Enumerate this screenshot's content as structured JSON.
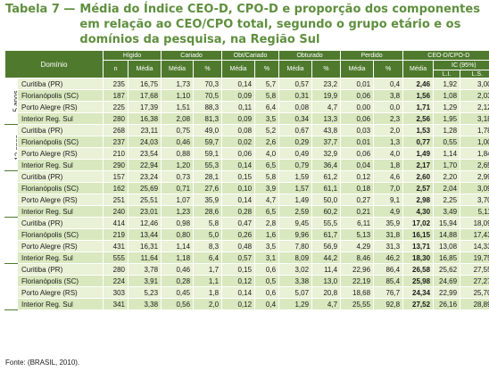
{
  "title": {
    "number": "Tabela 7 —",
    "text": "Média do Índice CEO-D, CPO-D e proporção dos componentes em relação ao CEO/CPO total, segundo o grupo etário e os domínios da pesquisa, na Região Sul"
  },
  "table": {
    "header": {
      "dominio": "Domínio",
      "groups": [
        "Hígido",
        "Cariado",
        "Obt/Cariado",
        "Obturado",
        "Perdido",
        "CEO-D/CPO-D"
      ],
      "sub": [
        "n",
        "Média",
        "Média",
        "%",
        "Média",
        "%",
        "Média",
        "%",
        "Média",
        "%",
        "Média"
      ],
      "ic": "IC (95%)",
      "ic_sub": [
        "L.I.",
        "L.S."
      ]
    },
    "groups": [
      {
        "label": "5 anos",
        "rows": [
          [
            "Curitiba (PR)",
            "235",
            "16,75",
            "1,73",
            "70,3",
            "0,14",
            "5,7",
            "0,57",
            "23,2",
            "0,01",
            "0,4",
            "2,46",
            "1,92",
            "3,00"
          ],
          [
            "Florianópolis (SC)",
            "187",
            "17,68",
            "1,10",
            "70,5",
            "0,09",
            "5,8",
            "0,31",
            "19,9",
            "0,06",
            "3,8",
            "1,56",
            "1,08",
            "2,03"
          ],
          [
            "Porto Alegre (RS)",
            "225",
            "17,39",
            "1,51",
            "88,3",
            "0,11",
            "6,4",
            "0,08",
            "4,7",
            "0,00",
            "0,0",
            "1,71",
            "1,29",
            "2,12"
          ],
          [
            "Interior Reg. Sul",
            "280",
            "16,38",
            "2,08",
            "81,3",
            "0,09",
            "3,5",
            "0,34",
            "13,3",
            "0,06",
            "2,3",
            "2,56",
            "1,95",
            "3,18"
          ]
        ]
      },
      {
        "label": "12 anos",
        "rows": [
          [
            "Curitiba (PR)",
            "268",
            "23,11",
            "0,75",
            "49,0",
            "0,08",
            "5,2",
            "0,67",
            "43,8",
            "0,03",
            "2,0",
            "1,53",
            "1,28",
            "1,78"
          ],
          [
            "Florianópolis (SC)",
            "237",
            "24,03",
            "0,46",
            "59,7",
            "0,02",
            "2,6",
            "0,29",
            "37,7",
            "0,01",
            "1,3",
            "0,77",
            "0,55",
            "1,00"
          ],
          [
            "Porto Alegre (RS)",
            "210",
            "23,54",
            "0,88",
            "59,1",
            "0,06",
            "4,0",
            "0,49",
            "32,9",
            "0,06",
            "4,0",
            "1,49",
            "1,14",
            "1,84"
          ],
          [
            "Interior Reg. Sul",
            "290",
            "22,94",
            "1,20",
            "55,3",
            "0,14",
            "6,5",
            "0,79",
            "36,4",
            "0,04",
            "1,8",
            "2,17",
            "1,70",
            "2,65"
          ]
        ]
      },
      {
        "label": "15 a 19 anos",
        "rows": [
          [
            "Curitiba (PR)",
            "157",
            "23,24",
            "0,73",
            "28,1",
            "0,15",
            "5,8",
            "1,59",
            "61,2",
            "0,12",
            "4,6",
            "2,60",
            "2,20",
            "2,99"
          ],
          [
            "Florianópolis (SC)",
            "162",
            "25,69",
            "0,71",
            "27,6",
            "0,10",
            "3,9",
            "1,57",
            "61,1",
            "0,18",
            "7,0",
            "2,57",
            "2,04",
            "3,09"
          ],
          [
            "Porto Alegre (RS)",
            "251",
            "25,51",
            "1,07",
            "35,9",
            "0,14",
            "4,7",
            "1,49",
            "50,0",
            "0,27",
            "9,1",
            "2,98",
            "2,25",
            "3,70"
          ],
          [
            "Interior Reg. Sul",
            "240",
            "23,01",
            "1,23",
            "28,6",
            "0,28",
            "6,5",
            "2,59",
            "60,2",
            "0,21",
            "4,9",
            "4,30",
            "3,49",
            "5,11"
          ]
        ]
      },
      {
        "label": "35 a 44 anos",
        "rows": [
          [
            "Curitiba (PR)",
            "414",
            "12,46",
            "0,98",
            "5,8",
            "0,47",
            "2,8",
            "9,45",
            "55,5",
            "6,11",
            "35,9",
            "17,02",
            "15,94",
            "18,09"
          ],
          [
            "Florianópolis (SC)",
            "219",
            "13,44",
            "0,80",
            "5,0",
            "0,26",
            "1,6",
            "9,96",
            "61,7",
            "5,13",
            "31,8",
            "16,15",
            "14,88",
            "17,43"
          ],
          [
            "Porto Alegre (RS)",
            "431",
            "16,31",
            "1,14",
            "8,3",
            "0,48",
            "3,5",
            "7,80",
            "56,9",
            "4,29",
            "31,3",
            "13,71",
            "13,08",
            "14,33"
          ],
          [
            "Interior Reg. Sul",
            "555",
            "11,64",
            "1,18",
            "6,4",
            "0,57",
            "3,1",
            "8,09",
            "44,2",
            "8,46",
            "46,2",
            "18,30",
            "16,85",
            "19,75"
          ]
        ]
      },
      {
        "label": "65 a 74 anos",
        "rows": [
          [
            "Curitiba (PR)",
            "280",
            "3,78",
            "0,46",
            "1,7",
            "0,15",
            "0,6",
            "3,02",
            "11,4",
            "22,96",
            "86,4",
            "26,58",
            "25,62",
            "27,55"
          ],
          [
            "Florianópolis (SC)",
            "224",
            "3,91",
            "0,28",
            "1,1",
            "0,12",
            "0,5",
            "3,38",
            "13,0",
            "22,19",
            "85,4",
            "25,98",
            "24,69",
            "27,27"
          ],
          [
            "Porto Alegre (RS)",
            "303",
            "5,23",
            "0,45",
            "1,8",
            "0,14",
            "0,6",
            "5,07",
            "20,8",
            "18,68",
            "76,7",
            "24,34",
            "22,99",
            "25,70"
          ],
          [
            "Interior Reg. Sul",
            "341",
            "3,38",
            "0,56",
            "2,0",
            "0,12",
            "0,4",
            "1,29",
            "4,7",
            "25,55",
            "92,8",
            "27,52",
            "26,16",
            "28,89"
          ]
        ]
      }
    ]
  },
  "source": "Fonte: (BRASIL, 2010).",
  "colors": {
    "title": "#5f8f3e",
    "header_bg": "#4f7a2e",
    "row_light": "#e9f1d6",
    "row_dark": "#d9e8be"
  }
}
